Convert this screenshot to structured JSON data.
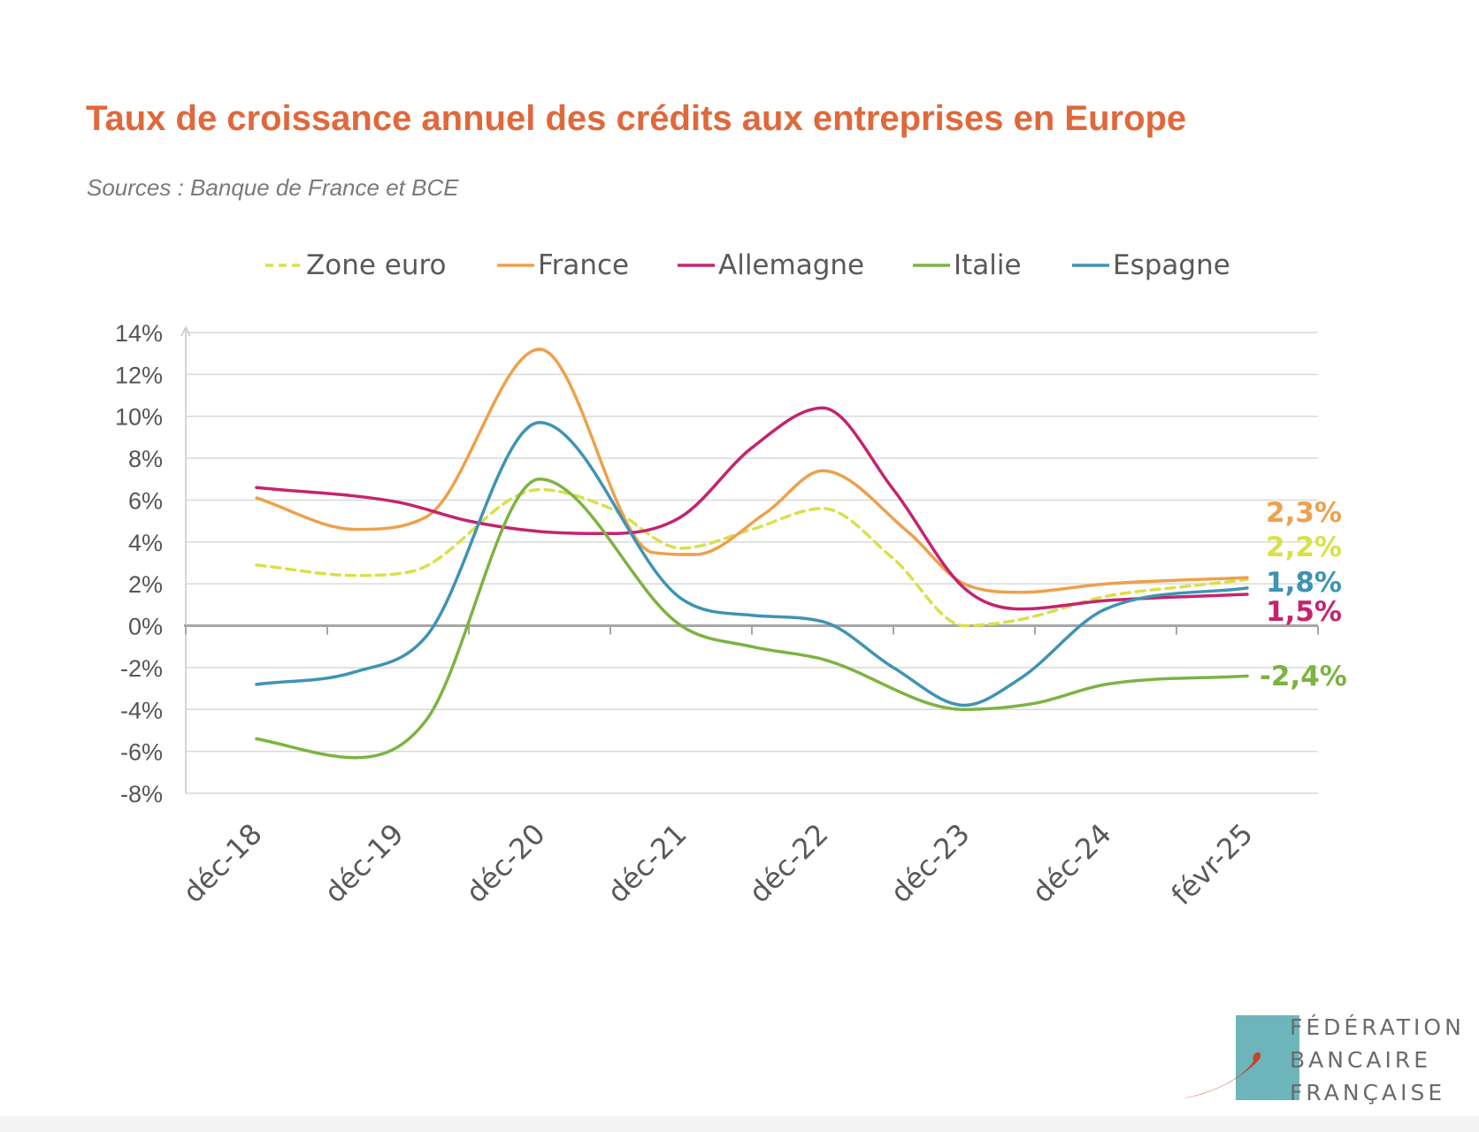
{
  "header": {
    "title": "Taux de croissance annuel des crédits aux entreprises en Europe",
    "subtitle": "Sources : Banque de France et BCE"
  },
  "logo": {
    "lines": [
      "FÉDÉRATION",
      "BANCAIRE",
      "FRANÇAISE"
    ],
    "tile_color": "#6DB5BA",
    "swoosh_color": "#C8412E"
  },
  "chart_data": {
    "type": "line",
    "categories": [
      "déc-18",
      "déc-19",
      "déc-20",
      "déc-21",
      "déc-22",
      "déc-23",
      "déc-24",
      "févr-25"
    ],
    "ylim": [
      -8,
      14
    ],
    "yticks": [
      "14%",
      "12%",
      "10%",
      "8%",
      "6%",
      "4%",
      "2%",
      "0%",
      "-2%",
      "-4%",
      "-6%",
      "-8%"
    ],
    "grid": true,
    "legend_position": "top",
    "series": [
      {
        "name": "Zone euro",
        "color": "#D9E04A",
        "dash": true,
        "x": [
          0,
          0.7,
          1.1,
          2,
          2.5,
          3,
          3.5,
          4,
          4.5,
          5,
          5.4,
          6,
          6.6,
          7
        ],
        "values": [
          2.9,
          2.4,
          2.6,
          6.5,
          5.6,
          3.7,
          4.6,
          5.6,
          3.2,
          0,
          0.3,
          1.4,
          1.9,
          2.2
        ],
        "end_label": "2,2%"
      },
      {
        "name": "France",
        "color": "#EEA04C",
        "dash": false,
        "x": [
          0,
          0.7,
          1.2,
          2,
          2.8,
          3.1,
          3.6,
          4,
          4.6,
          5,
          5.4,
          6,
          7
        ],
        "values": [
          6.1,
          4.6,
          5.2,
          13.2,
          3.5,
          3.4,
          5.4,
          7.4,
          4.5,
          2.0,
          1.6,
          2.0,
          2.3
        ],
        "end_label": "2,3%"
      },
      {
        "name": "Allemagne",
        "color": "#C4246E",
        "dash": false,
        "x": [
          0,
          1,
          1.5,
          2,
          2.5,
          3,
          3.5,
          4,
          4.5,
          5,
          5.4,
          6,
          7
        ],
        "values": [
          6.6,
          5.9,
          5.0,
          4.5,
          4.4,
          5.2,
          8.5,
          10.4,
          6.5,
          1.8,
          0.8,
          1.2,
          1.5
        ],
        "end_label": "1,5%"
      },
      {
        "name": "Italie",
        "color": "#7CB342",
        "dash": false,
        "x": [
          0,
          0.7,
          1.2,
          2,
          3,
          3.5,
          4,
          5,
          5.5,
          6,
          7
        ],
        "values": [
          -5.4,
          -6.3,
          -4.5,
          7.0,
          0,
          -1.0,
          -1.6,
          -4.0,
          -3.7,
          -2.8,
          -2.4
        ],
        "end_label": "-2,4%"
      },
      {
        "name": "Espagne",
        "color": "#3F93B3",
        "dash": false,
        "x": [
          0,
          0.7,
          1.2,
          2,
          3,
          3.5,
          4,
          4.5,
          5,
          5.4,
          6,
          7
        ],
        "values": [
          -2.8,
          -2.2,
          -0.5,
          9.7,
          1.3,
          0.5,
          0.2,
          -2.0,
          -3.8,
          -2.5,
          0.8,
          1.8
        ],
        "end_label": "1,8%"
      }
    ]
  }
}
